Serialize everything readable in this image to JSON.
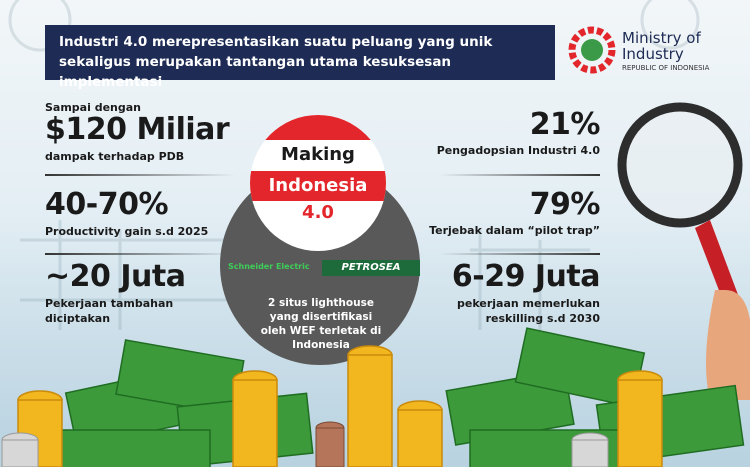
{
  "header": {
    "banner": "Industri 4.0 merepresentasikan suatu peluang yang unik sekaligus merupakan tantangan utama kesuksesan implementasi",
    "logo": {
      "name": "Ministry of Industry",
      "subtitle": "REPUBLIC OF INDONESIA"
    }
  },
  "left_stats": [
    {
      "prefix": "Sampai dengan",
      "value": "$120 Miliar",
      "label": "dampak terhadap PDB"
    },
    {
      "value": "40-70%",
      "label": "Productivity gain s.d 2025"
    },
    {
      "value": "~20 Juta",
      "label": "Pekerjaan tambahan diciptakan"
    }
  ],
  "right_stats": [
    {
      "value": "21%",
      "label": "Pengadopsian Industri 4.0"
    },
    {
      "value": "79%",
      "label": "Terjebak dalam “pilot trap”"
    },
    {
      "value": "6-29 Juta",
      "label": "pekerjaan memerlukan reskilling s.d 2030"
    }
  ],
  "center": {
    "title": [
      "Making",
      "Indonesia",
      "4.0"
    ],
    "logos": [
      "Schneider Electric",
      "PETROSEA"
    ],
    "caption": "2 situs lighthouse yang disertifikasi oleh WEF terletak di Indonesia"
  }
}
